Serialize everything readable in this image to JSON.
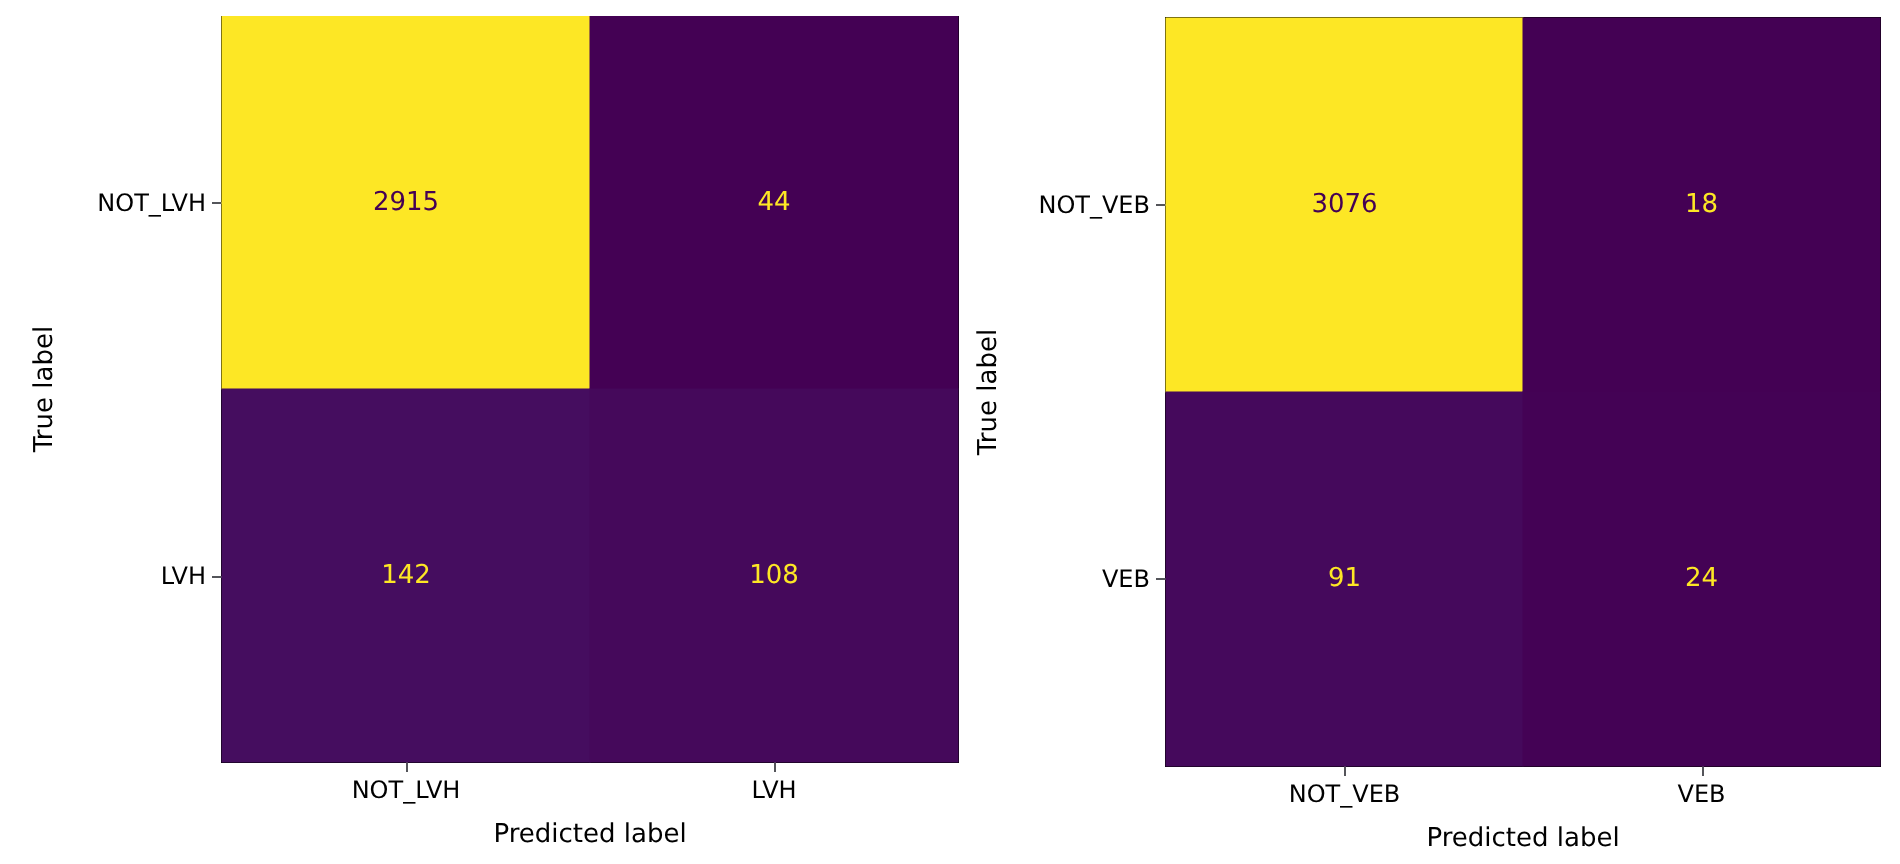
{
  "chart_data": [
    {
      "type": "heatmap",
      "xlabel": "Predicted label",
      "ylabel": "True label",
      "categories": [
        "NOT_LVH",
        "LVH"
      ],
      "y_categories": [
        "NOT_LVH",
        "LVH"
      ],
      "cells": [
        [
          2915,
          44
        ],
        [
          142,
          108
        ]
      ],
      "data_labels": true
    },
    {
      "type": "heatmap",
      "xlabel": "Predicted label",
      "ylabel": "True label",
      "categories": [
        "NOT_VEB",
        "VEB"
      ],
      "y_categories": [
        "NOT_VEB",
        "VEB"
      ],
      "cells": [
        [
          3076,
          18
        ],
        [
          91,
          24
        ]
      ],
      "data_labels": true
    }
  ]
}
